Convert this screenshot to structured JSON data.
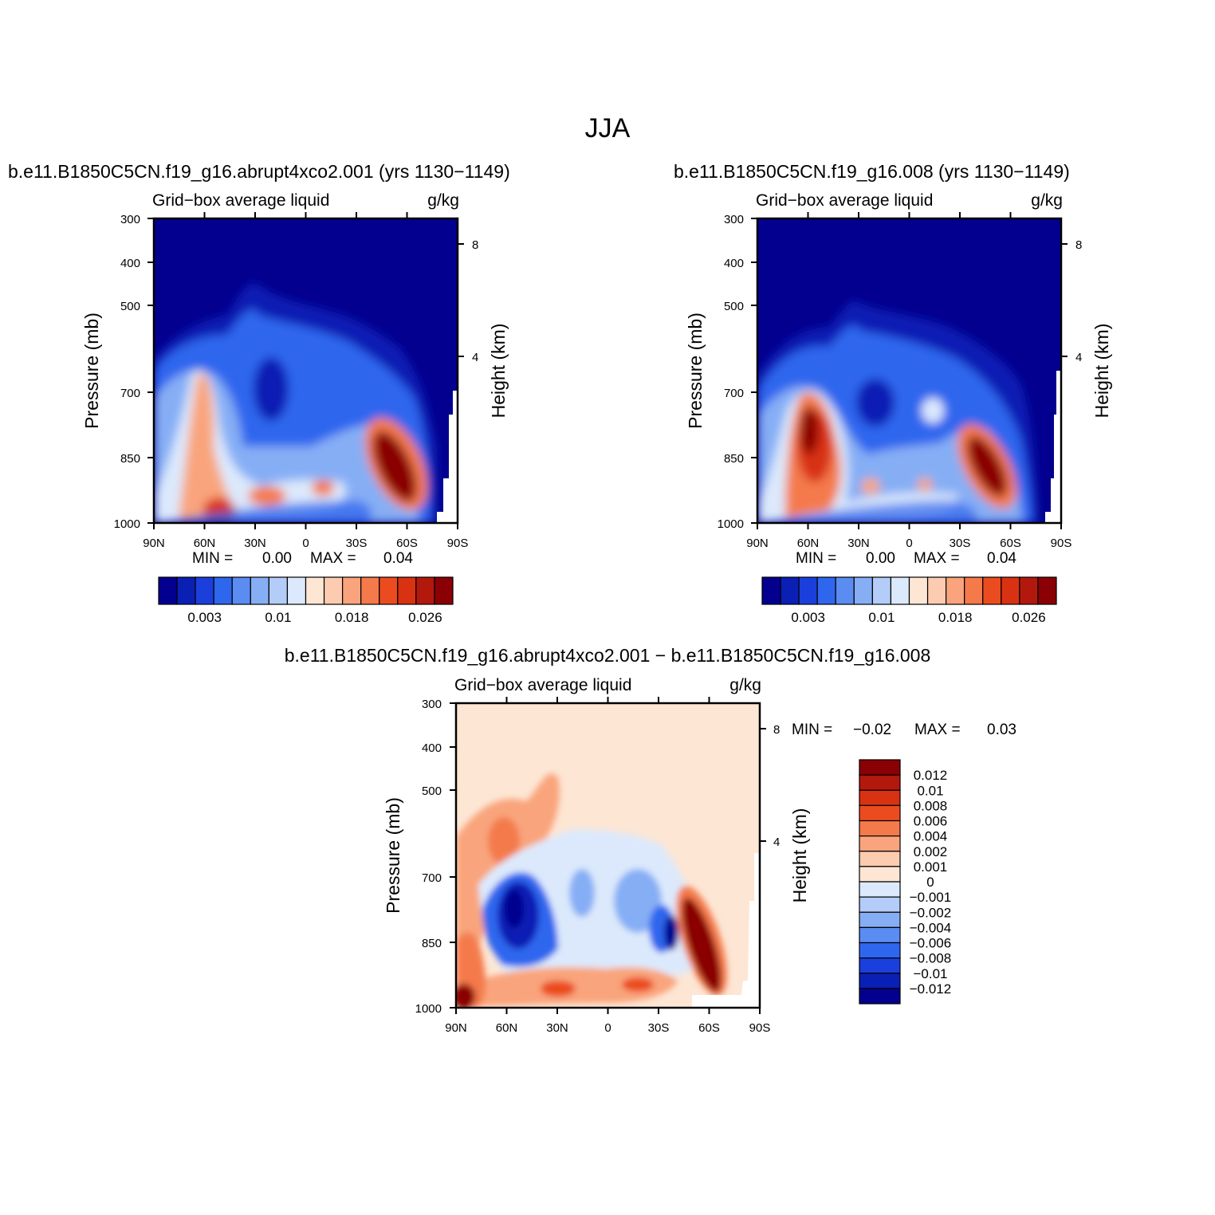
{
  "figure_title": "JJA",
  "chart_data": [
    {
      "type": "heatmap",
      "title": "b.e11.B1850C5CN.f19_g16.abrupt4xco2.001 (yrs 1130−1149)",
      "variable_label": "Grid−box average liquid",
      "units": "g/kg",
      "ylabel": "Pressure (mb)",
      "ylabel_right": "Height (km)",
      "xlim": [
        -90,
        90
      ],
      "ylim": [
        300,
        1000
      ],
      "x_tick_labels": [
        "90N",
        "60N",
        "30N",
        "0",
        "30S",
        "60S",
        "90S"
      ],
      "y_tick_labels": [
        "300",
        "400",
        "500",
        "700",
        "850",
        "1000"
      ],
      "y_tick_values": [
        300,
        400,
        500,
        700,
        850,
        1000
      ],
      "right_tick_labels": [
        "8",
        "4"
      ],
      "right_tick_values": [
        8,
        4
      ],
      "min_label": "MIN =",
      "min_value": "0.00",
      "max_label": "MAX =",
      "max_value": "0.04",
      "colorbar_labels": [
        "0.003",
        "0.01",
        "0.018",
        "0.026"
      ],
      "colorbar_label_index": [
        2,
        6,
        10,
        14
      ],
      "colorbar_colors": [
        "#03008f",
        "#0a1fb4",
        "#1a3fdc",
        "#2f66ee",
        "#5a8cf2",
        "#86aef5",
        "#b3ccf8",
        "#dce9fc",
        "#fde6d4",
        "#fccbb0",
        "#f9a47c",
        "#f47a4c",
        "#eb4c1f",
        "#d83212",
        "#b3180d",
        "#8a0005"
      ]
    },
    {
      "type": "heatmap",
      "title": "b.e11.B1850C5CN.f19_g16.008 (yrs 1130−1149)",
      "variable_label": "Grid−box average liquid",
      "units": "g/kg",
      "ylabel": "Pressure (mb)",
      "ylabel_right": "Height (km)",
      "xlim": [
        -90,
        90
      ],
      "ylim": [
        300,
        1000
      ],
      "x_tick_labels": [
        "90N",
        "60N",
        "30N",
        "0",
        "30S",
        "60S",
        "90S"
      ],
      "y_tick_labels": [
        "300",
        "400",
        "500",
        "700",
        "850",
        "1000"
      ],
      "y_tick_values": [
        300,
        400,
        500,
        700,
        850,
        1000
      ],
      "right_tick_labels": [
        "8",
        "4"
      ],
      "right_tick_values": [
        8,
        4
      ],
      "min_label": "MIN =",
      "min_value": "0.00",
      "max_label": "MAX =",
      "max_value": "0.04",
      "colorbar_labels": [
        "0.003",
        "0.01",
        "0.018",
        "0.026"
      ],
      "colorbar_label_index": [
        2,
        6,
        10,
        14
      ],
      "colorbar_colors": [
        "#03008f",
        "#0a1fb4",
        "#1a3fdc",
        "#2f66ee",
        "#5a8cf2",
        "#86aef5",
        "#b3ccf8",
        "#dce9fc",
        "#fde6d4",
        "#fccbb0",
        "#f9a47c",
        "#f47a4c",
        "#eb4c1f",
        "#d83212",
        "#b3180d",
        "#8a0005"
      ]
    },
    {
      "type": "heatmap",
      "title": "b.e11.B1850C5CN.f19_g16.abrupt4xco2.001 − b.e11.B1850C5CN.f19_g16.008",
      "variable_label": "Grid−box average liquid",
      "units": "g/kg",
      "ylabel": "Pressure (mb)",
      "ylabel_right": "Height (km)",
      "xlim": [
        -90,
        90
      ],
      "ylim": [
        300,
        1000
      ],
      "x_tick_labels": [
        "90N",
        "60N",
        "30N",
        "0",
        "30S",
        "60S",
        "90S"
      ],
      "y_tick_labels": [
        "300",
        "400",
        "500",
        "700",
        "850",
        "1000"
      ],
      "y_tick_values": [
        300,
        400,
        500,
        700,
        850,
        1000
      ],
      "right_tick_labels": [
        "8",
        "4"
      ],
      "right_tick_values": [
        8,
        4
      ],
      "min_label": "MIN =",
      "min_value": "−0.02",
      "max_label": "MAX =",
      "max_value": "0.03",
      "colorbar_labels": [
        "0.012",
        "0.01",
        "0.008",
        "0.006",
        "0.004",
        "0.002",
        "0.001",
        "0",
        "−0.001",
        "−0.002",
        "−0.004",
        "−0.006",
        "−0.008",
        "−0.01",
        "−0.012"
      ],
      "colorbar_colors": [
        "#8a0005",
        "#b3180d",
        "#d83212",
        "#eb4c1f",
        "#f47a4c",
        "#f9a47c",
        "#fccbb0",
        "#fde6d4",
        "#dce9fc",
        "#b3ccf8",
        "#86aef5",
        "#5a8cf2",
        "#2f66ee",
        "#1a3fdc",
        "#0a1fb4",
        "#03008f"
      ]
    }
  ]
}
